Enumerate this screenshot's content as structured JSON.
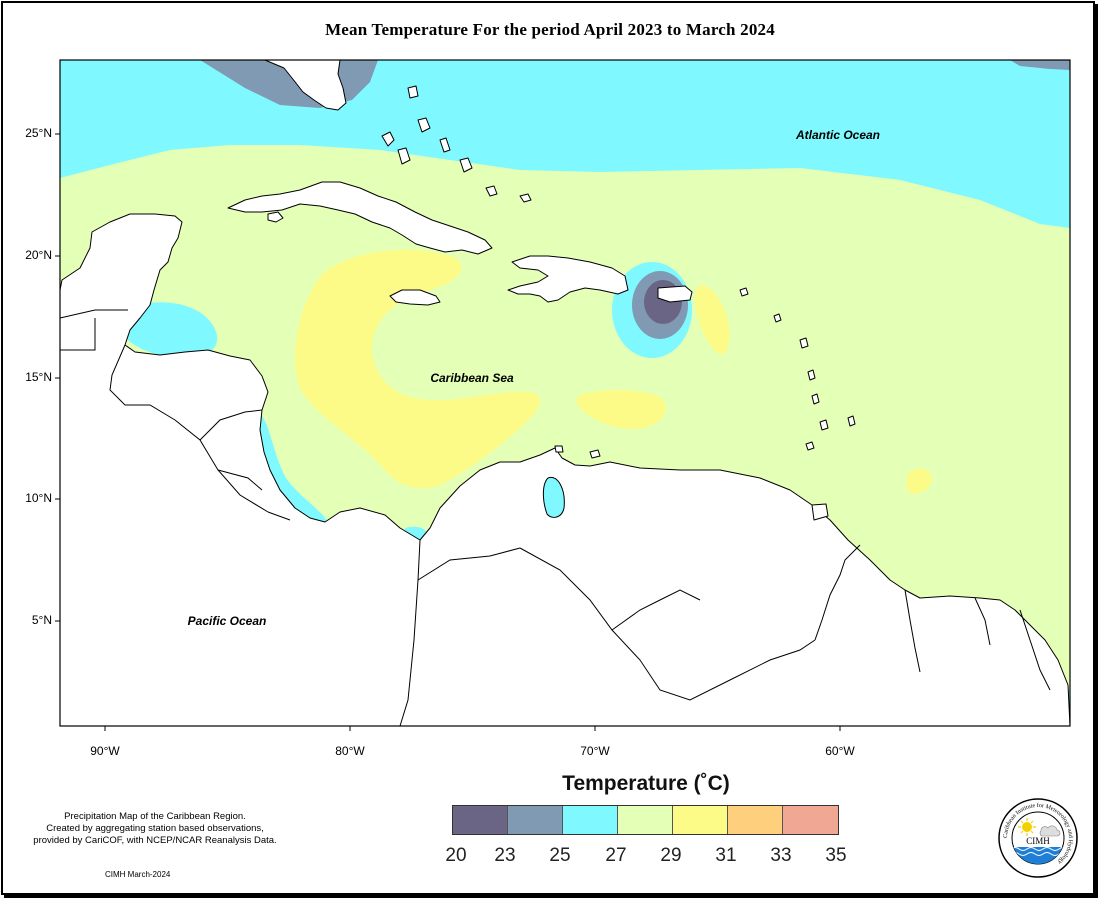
{
  "title": "Mean Temperature For the period April 2023 to March 2024",
  "labels": {
    "atlantic": "Atlantic Ocean",
    "caribbean": "Caribbean Sea",
    "pacific": "Pacific Ocean"
  },
  "axes": {
    "lat_ticks": [
      "25°N",
      "20°N",
      "15°N",
      "10°N",
      "5°N"
    ],
    "lon_ticks": [
      "90°W",
      "80°W",
      "70°W",
      "60°W"
    ]
  },
  "legend": {
    "title": "Temperature (˚C)",
    "values": [
      "20",
      "23",
      "25",
      "27",
      "29",
      "31",
      "33",
      "35"
    ],
    "colors": [
      "#6b6585",
      "#7f9ab2",
      "#7ff9ff",
      "#e4ffb6",
      "#fdfb87",
      "#fed07e",
      "#f0a894"
    ]
  },
  "map_colors": {
    "c20": "#6b6585",
    "c23": "#7f9ab2",
    "c25": "#7ff9ff",
    "c27": "#e4ffb6",
    "c29": "#fdfb87",
    "land": "#ffffff"
  },
  "footnote": {
    "line1": "Precipitation Map of the Caribbean Region.",
    "line2": "Created by aggregating station based observations,",
    "line3": "provided by CariCOF, with NCEP/NCAR Reanalysis Data."
  },
  "credit": "CIMH March-2024",
  "logo": {
    "text": "CIMH",
    "ring_text": "Caribbean Institute for Meteorology and Hydrology"
  }
}
